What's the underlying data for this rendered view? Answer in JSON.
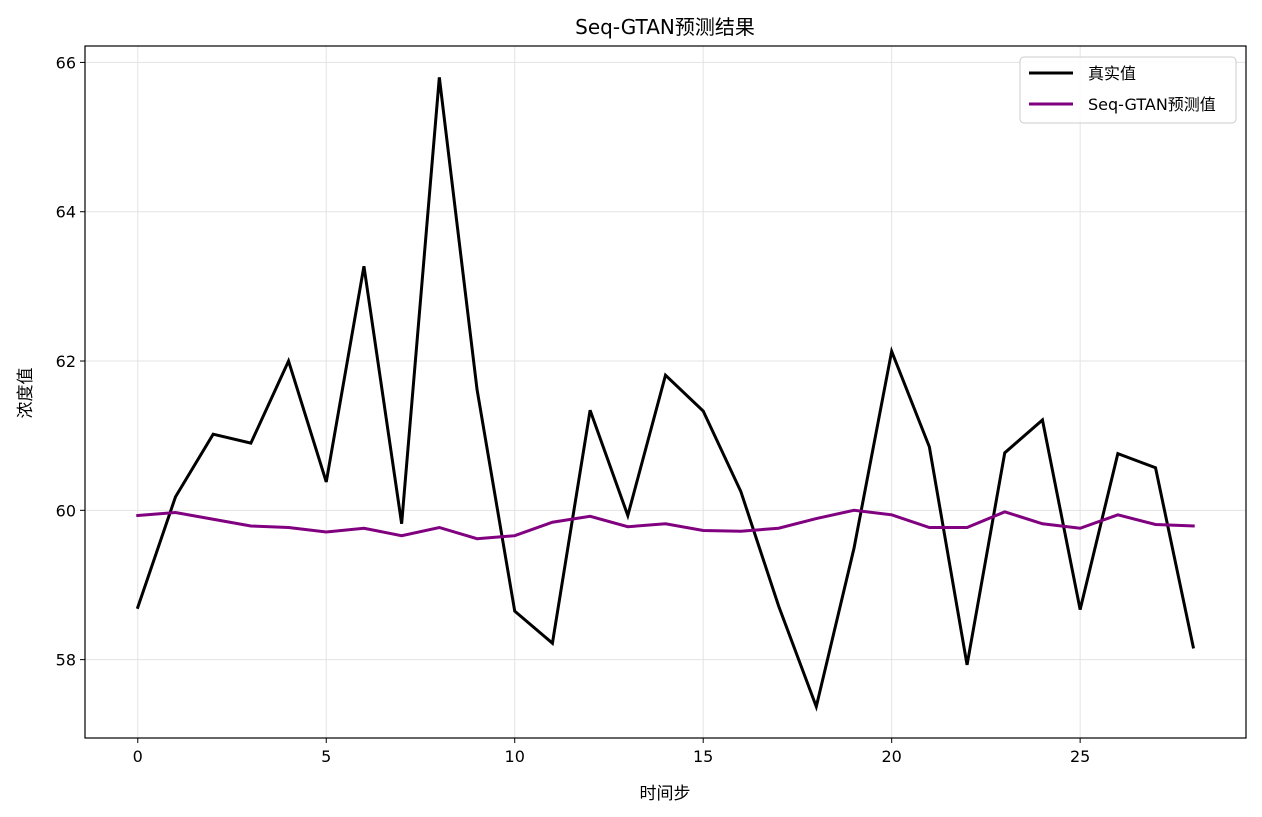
{
  "chart_data": {
    "type": "line",
    "title": "Seq-GTAN预测结果",
    "xlabel": "时间步",
    "ylabel": "浓度值",
    "xlim": [
      -1.4,
      29.4
    ],
    "ylim": [
      56.95,
      66.22
    ],
    "xticks": [
      0,
      5,
      10,
      15,
      20,
      25
    ],
    "yticks": [
      58,
      60,
      62,
      64,
      66
    ],
    "grid": true,
    "legend_position": "top-right",
    "x": [
      0,
      1,
      2,
      3,
      4,
      5,
      6,
      7,
      8,
      9,
      10,
      11,
      12,
      13,
      14,
      15,
      16,
      17,
      18,
      19,
      20,
      21,
      22,
      23,
      24,
      25,
      26,
      27,
      28
    ],
    "series": [
      {
        "name": "真实值",
        "color": "#000000",
        "values": [
          58.7,
          60.18,
          61.02,
          60.9,
          62.0,
          60.38,
          63.27,
          59.82,
          65.8,
          61.62,
          58.65,
          58.22,
          61.34,
          59.93,
          61.81,
          61.33,
          60.25,
          58.72,
          57.37,
          59.49,
          62.13,
          60.85,
          57.93,
          60.77,
          61.21,
          58.67,
          60.76,
          60.57,
          58.17
        ]
      },
      {
        "name": "Seq-GTAN预测值",
        "color": "#800080",
        "values": [
          59.93,
          59.97,
          59.88,
          59.79,
          59.77,
          59.71,
          59.76,
          59.66,
          59.77,
          59.62,
          59.66,
          59.84,
          59.92,
          59.78,
          59.82,
          59.73,
          59.72,
          59.76,
          59.89,
          60.0,
          59.94,
          59.77,
          59.77,
          59.98,
          59.82,
          59.76,
          59.94,
          59.81,
          59.79
        ]
      }
    ]
  }
}
